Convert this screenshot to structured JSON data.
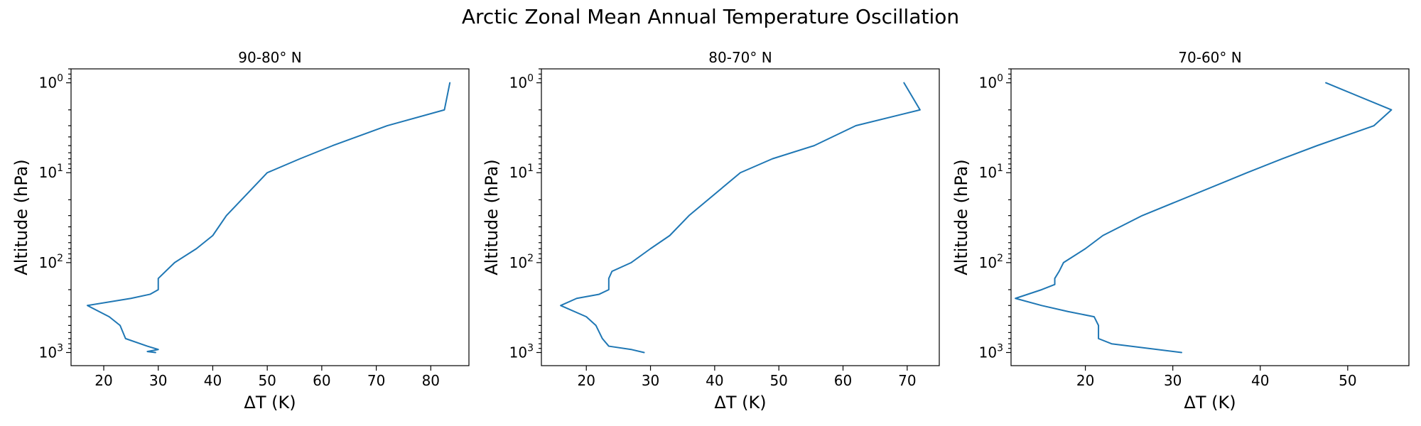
{
  "figure": {
    "title": "Arctic Zonal Mean Annual Temperature Oscillation",
    "series_color": "#1f77b4"
  },
  "chart_data": [
    {
      "type": "line",
      "title": "90-80° N",
      "xlabel": "ΔT (K)",
      "ylabel": "Altitude (hPa)",
      "yscale": "log",
      "yinverted": true,
      "xlim": [
        14,
        87
      ],
      "ylim": [
        1400,
        0.7
      ],
      "xticks": [
        20,
        30,
        40,
        50,
        60,
        70,
        80
      ],
      "yticks": [
        {
          "base": "10",
          "exp": "0",
          "value": 1
        },
        {
          "base": "10",
          "exp": "1",
          "value": 10
        },
        {
          "base": "10",
          "exp": "2",
          "value": 100
        },
        {
          "base": "10",
          "exp": "3",
          "value": 1000
        }
      ],
      "grid": false,
      "series": [
        {
          "x": [
            83.5,
            82.5,
            72,
            62,
            56,
            50,
            42.5,
            40,
            37,
            33,
            30,
            30,
            28.5,
            25,
            17,
            21,
            23,
            24,
            28,
            30,
            28,
            29.5
          ],
          "y": [
            1,
            2,
            3,
            5,
            7,
            10,
            30,
            50,
            70,
            100,
            150,
            200,
            225,
            250,
            300,
            400,
            500,
            700,
            850,
            925,
            975,
            1000
          ]
        }
      ]
    },
    {
      "type": "line",
      "title": "80-70° N",
      "xlabel": "ΔT (K)",
      "ylabel": "Altitude (hPa)",
      "yscale": "log",
      "yinverted": true,
      "xlim": [
        13,
        75
      ],
      "ylim": [
        1400,
        0.7
      ],
      "xticks": [
        20,
        30,
        40,
        50,
        60,
        70
      ],
      "yticks": [
        {
          "base": "10",
          "exp": "0",
          "value": 1
        },
        {
          "base": "10",
          "exp": "1",
          "value": 10
        },
        {
          "base": "10",
          "exp": "2",
          "value": 100
        },
        {
          "base": "10",
          "exp": "3",
          "value": 1000
        }
      ],
      "grid": false,
      "series": [
        {
          "x": [
            69.5,
            72,
            62,
            55.5,
            49,
            44,
            36,
            33,
            30,
            27,
            24,
            23.5,
            23.5,
            22,
            18.5,
            16,
            20,
            21.5,
            22.5,
            23.5,
            27,
            29
          ],
          "y": [
            1,
            2,
            3,
            5,
            7,
            10,
            30,
            50,
            70,
            100,
            125,
            150,
            200,
            225,
            250,
            300,
            400,
            500,
            700,
            850,
            925,
            1000
          ]
        }
      ]
    },
    {
      "type": "line",
      "title": "70-60° N",
      "xlabel": "ΔT (K)",
      "ylabel": "Altitude (hPa)",
      "yscale": "log",
      "yinverted": true,
      "xlim": [
        11.5,
        57
      ],
      "ylim": [
        1400,
        0.7
      ],
      "xticks": [
        20,
        30,
        40,
        50
      ],
      "yticks": [
        {
          "base": "10",
          "exp": "0",
          "value": 1
        },
        {
          "base": "10",
          "exp": "1",
          "value": 10
        },
        {
          "base": "10",
          "exp": "2",
          "value": 100
        },
        {
          "base": "10",
          "exp": "3",
          "value": 1000
        }
      ],
      "grid": false,
      "series": [
        {
          "x": [
            47.5,
            55,
            53,
            46.5,
            42.5,
            38.5,
            26.5,
            22,
            20,
            17.5,
            17,
            16.5,
            16.5,
            15,
            12,
            15,
            18,
            21,
            21.5,
            21.5,
            23,
            31
          ],
          "y": [
            1,
            2,
            3,
            5,
            7,
            10,
            30,
            50,
            70,
            100,
            125,
            150,
            175,
            200,
            250,
            300,
            350,
            400,
            500,
            700,
            800,
            1000
          ]
        }
      ]
    }
  ]
}
